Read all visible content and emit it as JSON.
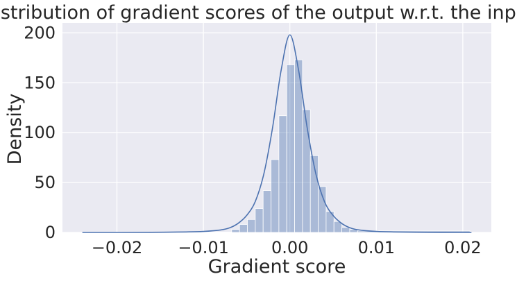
{
  "chart_data": {
    "type": "bar",
    "title": "Distribution of gradient scores of the output w.r.t. the input",
    "xlabel": "Gradient score",
    "ylabel": "Density",
    "xlim": [
      -0.0263,
      0.0233
    ],
    "ylim": [
      0,
      210
    ],
    "x_ticks": [
      -0.02,
      -0.01,
      0.0,
      0.01,
      0.02
    ],
    "x_tick_labels": [
      "−0.02",
      "−0.01",
      "0.00",
      "0.01",
      "0.02"
    ],
    "y_ticks": [
      0,
      50,
      100,
      150,
      200
    ],
    "y_tick_labels": [
      "0",
      "50",
      "100",
      "150",
      "200"
    ],
    "grid": true,
    "legend": "none",
    "colors": {
      "background": "#eaeaf2",
      "grid": "#ffffff",
      "bar_fill": "#4c72b0",
      "bar_fill_opacity": 0.4,
      "kde_line": "#4c72b0"
    },
    "histogram": {
      "bin_width": 0.00091,
      "bin_starts": [
        -0.024,
        -0.00673,
        -0.00582,
        -0.00491,
        -0.004,
        -0.00309,
        -0.00218,
        -0.00127,
        -0.00036,
        0.00055,
        0.00146,
        0.00237,
        0.00328,
        0.00419,
        0.0051,
        0.00601,
        0.00692,
        0.00783
      ],
      "densities": [
        0.3,
        3,
        8,
        13,
        24,
        42,
        73,
        117,
        168,
        173,
        123,
        77,
        46,
        21,
        11,
        5,
        3,
        1.5
      ],
      "bin_widths_override": [
        0.0173,
        0.00091,
        0.00091,
        0.00091,
        0.00091,
        0.00091,
        0.00091,
        0.00091,
        0.00091,
        0.00091,
        0.00091,
        0.00091,
        0.00091,
        0.00091,
        0.00091,
        0.00091,
        0.00091,
        0.013
      ]
    },
    "kde": {
      "x": [
        -0.024,
        -0.02,
        -0.016,
        -0.012,
        -0.01,
        -0.008,
        -0.007,
        -0.006,
        -0.005,
        -0.004,
        -0.003,
        -0.002,
        -0.001,
        0.0,
        0.001,
        0.002,
        0.003,
        0.004,
        0.005,
        0.006,
        0.007,
        0.008,
        0.01,
        0.012,
        0.016,
        0.02,
        0.021
      ],
      "y": [
        0,
        0,
        0.1,
        0.5,
        1,
        2.5,
        4.5,
        9,
        17,
        31,
        59,
        105,
        163,
        198,
        163,
        105,
        59,
        31,
        17,
        9,
        4.5,
        2.5,
        1,
        0.5,
        0.1,
        0,
        0
      ]
    }
  }
}
